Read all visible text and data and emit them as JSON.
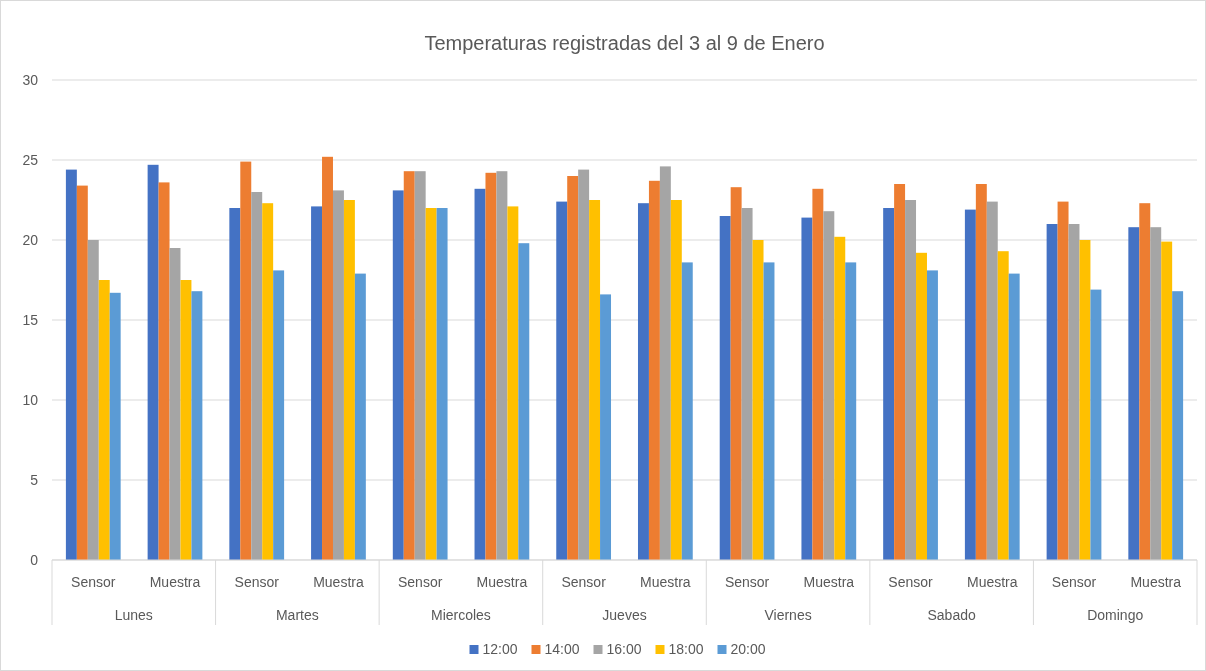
{
  "chart_data": {
    "type": "bar",
    "title": "Temperaturas registradas del 3 al 9 de Enero",
    "categories": [
      "Sensor",
      "Muestra",
      "Sensor",
      "Muestra",
      "Sensor",
      "Muestra",
      "Sensor",
      "Muestra",
      "Sensor",
      "Muestra",
      "Sensor",
      "Muestra",
      "Sensor",
      "Muestra"
    ],
    "annotations": [
      "Lunes",
      "Martes",
      "Miercoles",
      "Jueves",
      "Viernes",
      "Sabado",
      "Domingo"
    ],
    "series": [
      {
        "name": "12:00",
        "color": "#4472c4",
        "values": [
          24.4,
          24.7,
          22.0,
          22.1,
          23.1,
          23.2,
          22.4,
          22.3,
          21.5,
          21.4,
          22.0,
          21.9,
          21.0,
          20.8
        ]
      },
      {
        "name": "14:00",
        "color": "#ed7d31",
        "values": [
          23.4,
          23.6,
          24.9,
          25.2,
          24.3,
          24.2,
          24.0,
          23.7,
          23.3,
          23.2,
          23.5,
          23.5,
          22.4,
          22.3
        ]
      },
      {
        "name": "16:00",
        "color": "#a5a5a5",
        "values": [
          20.0,
          19.5,
          23.0,
          23.1,
          24.3,
          24.3,
          24.4,
          24.6,
          22.0,
          21.8,
          22.5,
          22.4,
          21.0,
          20.8
        ]
      },
      {
        "name": "18:00",
        "color": "#ffc000",
        "values": [
          17.5,
          17.5,
          22.3,
          22.5,
          22.0,
          22.1,
          22.5,
          22.5,
          20.0,
          20.2,
          19.2,
          19.3,
          20.0,
          19.9
        ]
      },
      {
        "name": "20:00",
        "color": "#5b9bd5",
        "values": [
          16.7,
          16.8,
          18.1,
          17.9,
          22.0,
          19.8,
          16.6,
          18.6,
          18.6,
          18.6,
          18.1,
          17.9,
          16.9,
          16.8
        ]
      }
    ],
    "ylim": [
      0,
      30
    ],
    "yticks": [
      0,
      5,
      10,
      15,
      20,
      25,
      30
    ],
    "grid": "y",
    "legend": "bottom"
  }
}
